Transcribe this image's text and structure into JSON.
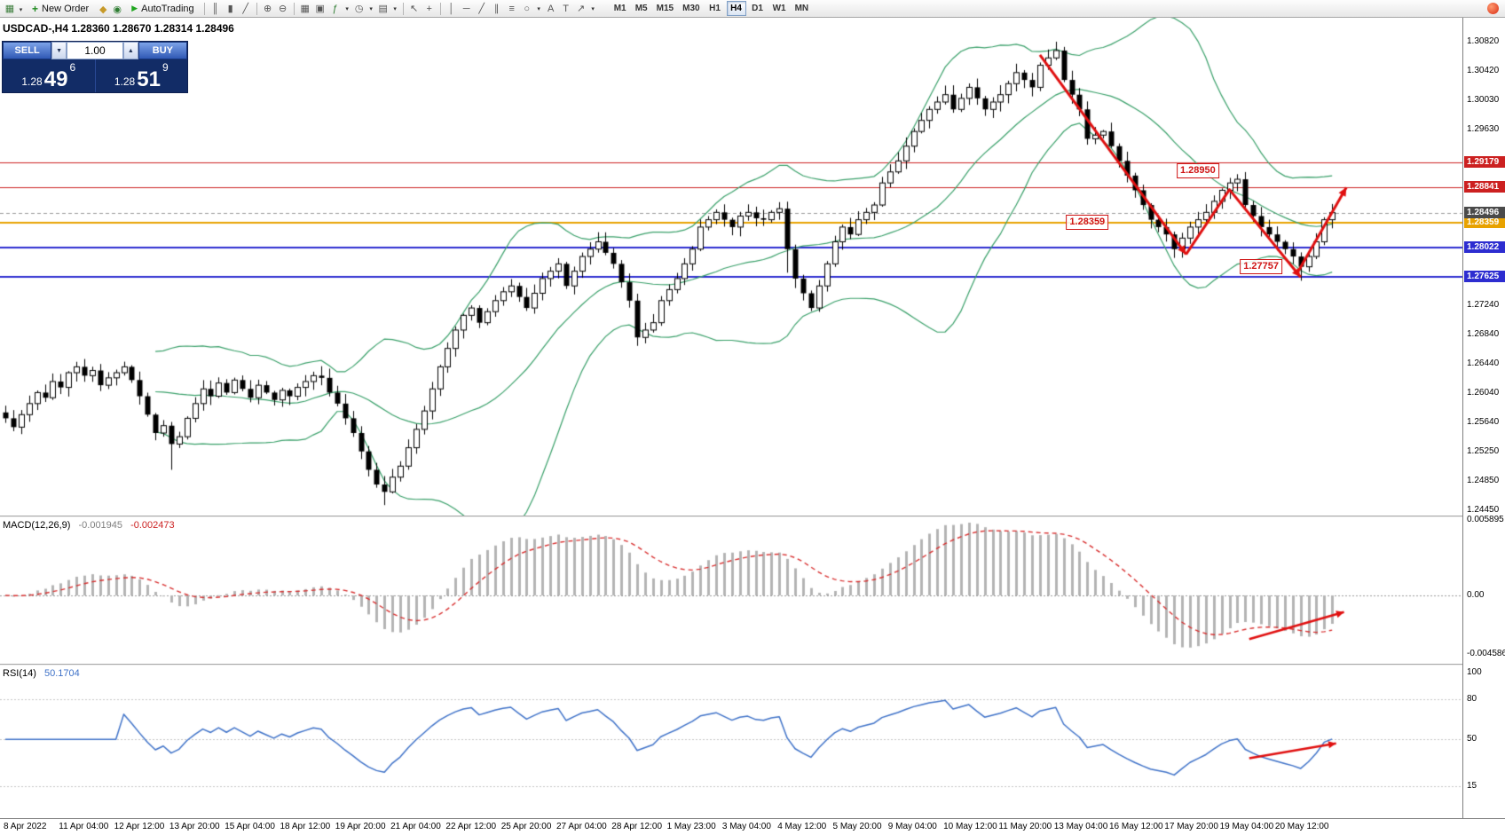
{
  "toolbar": {
    "new_order_label": "New Order",
    "autotrading_label": "AutoTrading",
    "left_icons": [
      {
        "name": "new-chart-icon",
        "glyph": "▦",
        "color": "#3b7d3b"
      },
      {
        "name": "new-chart-dropdown-icon",
        "glyph": "▾",
        "dd": true
      }
    ],
    "mid_icons": [
      {
        "name": "chart-profiles-icon",
        "glyph": "◆",
        "color": "#c79a2a"
      },
      {
        "name": "market-watch-icon",
        "glyph": "◉",
        "color": "#2f7d32"
      }
    ],
    "tool_icons": [
      {
        "sep": true
      },
      {
        "name": "bar-chart-icon",
        "glyph": "║"
      },
      {
        "name": "candlestick-chart-icon",
        "glyph": "▮"
      },
      {
        "name": "line-chart-icon",
        "glyph": "╱"
      },
      {
        "sep": true
      },
      {
        "name": "zoom-in-icon",
        "glyph": "⊕"
      },
      {
        "name": "zoom-out-icon",
        "glyph": "⊖"
      },
      {
        "sep": true
      },
      {
        "name": "tile-windows-icon",
        "glyph": "▦"
      },
      {
        "name": "arrange-windows-icon",
        "glyph": "▣"
      },
      {
        "name": "indicators-icon",
        "glyph": "ƒ",
        "color": "#2f7d32"
      },
      {
        "name": "indicators-dropdown-icon",
        "glyph": "▾",
        "dd": true
      },
      {
        "name": "periods-icon",
        "glyph": "◷"
      },
      {
        "name": "periods-dropdown-icon",
        "glyph": "▾",
        "dd": true
      },
      {
        "name": "templates-icon",
        "glyph": "▤"
      },
      {
        "name": "templates-dropdown-icon",
        "glyph": "▾",
        "dd": true
      },
      {
        "sep": true
      },
      {
        "name": "cursor-icon",
        "glyph": "↖"
      },
      {
        "name": "crosshair-icon",
        "glyph": "+"
      },
      {
        "sep": true
      },
      {
        "name": "vertical-line-icon",
        "glyph": "│"
      },
      {
        "name": "horizontal-line-icon",
        "glyph": "─"
      },
      {
        "name": "trendline-icon",
        "glyph": "╱"
      },
      {
        "name": "equidistant-channel-icon",
        "glyph": "∥"
      },
      {
        "name": "fibonacci-retracement-icon",
        "glyph": "≡"
      },
      {
        "name": "shapes-icon",
        "glyph": "○"
      },
      {
        "name": "shapes-dropdown-icon",
        "glyph": "▾",
        "dd": true
      },
      {
        "name": "text-icon",
        "glyph": "A"
      },
      {
        "name": "text-label-icon",
        "glyph": "T"
      },
      {
        "name": "arrows-icon",
        "glyph": "↗"
      },
      {
        "name": "arrows-dropdown-icon",
        "glyph": "▾",
        "dd": true
      }
    ],
    "timeframes": {
      "items": [
        "M1",
        "M5",
        "M15",
        "M30",
        "H1",
        "H4",
        "D1",
        "W1",
        "MN"
      ],
      "active": "H4"
    }
  },
  "trade_panel": {
    "sell_label": "SELL",
    "buy_label": "BUY",
    "volume": "1.00",
    "sell_prefix": "1.28",
    "sell_big": "49",
    "sell_sup": "6",
    "buy_prefix": "1.28",
    "buy_big": "51",
    "buy_sup": "9"
  },
  "chart": {
    "title_line": "USDCAD-,H4  1.28360 1.28670 1.28314 1.28496",
    "price_ticks": [
      "1.30820",
      "1.30420",
      "1.30030",
      "1.29630",
      "1.27240",
      "1.26840",
      "1.26440",
      "1.26040",
      "1.25640",
      "1.25250",
      "1.24850",
      "1.24450"
    ],
    "hlines": [
      {
        "label": "1.29179",
        "value": 1.29179,
        "color": "#cc2020",
        "width": 1
      },
      {
        "label": "1.28841",
        "value": 1.28841,
        "color": "#cc2020",
        "width": 1
      },
      {
        "label": "1.28359",
        "value": 1.28359,
        "color": "#e8a200",
        "width": 2
      },
      {
        "label": "1.28022",
        "value": 1.28022,
        "color": "#2d2dd0",
        "width": 2
      },
      {
        "label": "1.27625",
        "value": 1.27625,
        "color": "#2d2dd0",
        "width": 2
      }
    ],
    "current_price": {
      "label": "1.28496",
      "value": 1.28496
    },
    "callouts": [
      {
        "text": "1.28950",
        "ci": 151,
        "price": 1.2906
      },
      {
        "text": "1.28359",
        "ci": 137,
        "price": 1.28359
      },
      {
        "text": "1.27757",
        "ci": 159,
        "price": 1.27757
      }
    ],
    "time_labels": [
      "8 Apr 2022",
      "11 Apr 04:00",
      "12 Apr 12:00",
      "13 Apr 20:00",
      "15 Apr 04:00",
      "18 Apr 12:00",
      "19 Apr 20:00",
      "21 Apr 04:00",
      "22 Apr 12:00",
      "25 Apr 20:00",
      "27 Apr 04:00",
      "28 Apr 12:00",
      "1 May 23:00",
      "3 May 04:00",
      "4 May 12:00",
      "5 May 20:00",
      "9 May 04:00",
      "10 May 12:00",
      "11 May 20:00",
      "13 May 04:00",
      "16 May 12:00",
      "17 May 20:00",
      "19 May 04:00",
      "20 May 12:00"
    ]
  },
  "macd_panel": {
    "header": "MACD(12,26,9)",
    "value_main": "-0.001945",
    "value_signal": "-0.002473",
    "scale_labels": [
      "0.005895",
      "0.00",
      "-0.004586"
    ]
  },
  "rsi_panel": {
    "header": "RSI(14)",
    "value": "50.1704",
    "scale_labels": [
      "100",
      "80",
      "50",
      "15"
    ]
  },
  "chart_data": {
    "type": "candlestick",
    "symbol": "USDCAD",
    "period": "H4",
    "title": "USDCAD-,H4",
    "current_ohlc": {
      "open": 1.2836,
      "high": 1.2867,
      "low": 1.28314,
      "close": 1.28496
    },
    "y_range": [
      1.2445,
      1.3082
    ],
    "x_range": [
      "8 Apr 2022",
      "20 May 12:00"
    ],
    "first_open": 1.2578,
    "closes": [
      1.257,
      1.2558,
      1.2575,
      1.259,
      1.2605,
      1.2598,
      1.262,
      1.2612,
      1.2632,
      1.264,
      1.2628,
      1.2635,
      1.2615,
      1.2625,
      1.2632,
      1.264,
      1.2622,
      1.26,
      1.2575,
      1.255,
      1.256,
      1.2535,
      1.2545,
      1.257,
      1.259,
      1.261,
      1.26,
      1.2618,
      1.2605,
      1.2622,
      1.261,
      1.2598,
      1.2615,
      1.2605,
      1.2595,
      1.2608,
      1.26,
      1.2612,
      1.262,
      1.2628,
      1.2625,
      1.2605,
      1.259,
      1.257,
      1.255,
      1.2525,
      1.25,
      1.248,
      1.247,
      1.249,
      1.2505,
      1.253,
      1.2555,
      1.258,
      1.261,
      1.264,
      1.2665,
      1.269,
      1.271,
      1.272,
      1.27,
      1.2715,
      1.273,
      1.2742,
      1.275,
      1.2735,
      1.272,
      1.274,
      1.276,
      1.277,
      1.278,
      1.275,
      1.277,
      1.279,
      1.28,
      1.281,
      1.2795,
      1.278,
      1.2755,
      1.273,
      1.268,
      1.269,
      1.27,
      1.273,
      1.2745,
      1.276,
      1.278,
      1.28,
      1.283,
      1.284,
      1.285,
      1.284,
      1.283,
      1.2845,
      1.285,
      1.2842,
      1.284,
      1.285,
      1.2855,
      1.28,
      1.276,
      1.274,
      1.272,
      1.275,
      1.278,
      1.281,
      1.283,
      1.282,
      1.284,
      1.285,
      1.286,
      1.289,
      1.2905,
      1.292,
      1.294,
      1.296,
      1.2975,
      1.299,
      1.3,
      1.301,
      1.299,
      1.3005,
      1.302,
      1.3005,
      1.299,
      1.3,
      1.301,
      1.3025,
      1.304,
      1.303,
      1.302,
      1.305,
      1.306,
      1.307,
      1.303,
      1.301,
      1.299,
      1.295,
      1.2955,
      1.296,
      1.294,
      1.292,
      1.29,
      1.288,
      1.286,
      1.284,
      1.283,
      1.282,
      1.28,
      1.2815,
      1.283,
      1.284,
      1.285,
      1.2865,
      1.288,
      1.289,
      1.2895,
      1.286,
      1.2845,
      1.283,
      1.282,
      1.281,
      1.28,
      1.279,
      1.2776,
      1.279,
      1.281,
      1.284,
      1.28496
    ],
    "spikes": {
      "21": {
        "low": 1.25
      },
      "48": {
        "low": 1.2452
      },
      "75": {
        "high": 1.2823
      },
      "99": {
        "low": 1.2768
      },
      "133": {
        "high": 1.3082
      },
      "164": {
        "low": 1.2757
      }
    },
    "indicators": [
      {
        "name": "Bollinger Bands",
        "period": 20,
        "deviation": 2
      },
      {
        "name": "MACD",
        "fast": 12,
        "slow": 26,
        "signal": 9,
        "value": -0.001945,
        "signal_value": -0.002473
      },
      {
        "name": "RSI",
        "period": 14,
        "value": 50.1704
      }
    ],
    "key_levels": [
      1.29179,
      1.28841,
      1.28359,
      1.28022,
      1.27625
    ],
    "rsi_levels": [
      80,
      50,
      15
    ],
    "arrows": {
      "main": [
        {
          "pts": [
            [
              131,
              1.3064
            ],
            [
              149.5,
              1.2793
            ]
          ]
        },
        {
          "pts": [
            [
              149.5,
              1.2793
            ],
            [
              155,
              1.2881
            ],
            [
              164,
              1.2762
            ]
          ]
        },
        {
          "pts": [
            [
              163.5,
              1.2766
            ],
            [
              169.8,
              1.2884
            ]
          ]
        }
      ],
      "macd": [
        {
          "pts": [
            [
              157.5,
              -0.0034
            ],
            [
              169.5,
              -0.0013
            ]
          ]
        }
      ],
      "rsi": [
        {
          "pts": [
            [
              157.5,
              36
            ],
            [
              168.5,
              47
            ]
          ]
        }
      ]
    },
    "colors": {
      "bands": "#3aa06a",
      "candle_up": "#ffffff",
      "candle_down": "#000000",
      "candle_border": "#000000",
      "macd_hist": "#b4b4b4",
      "macd_signal": "#d83030",
      "rsi_line": "#3f72c8",
      "trend_arrow": "#e01010",
      "current_price_box": "#4a4a4a"
    }
  }
}
